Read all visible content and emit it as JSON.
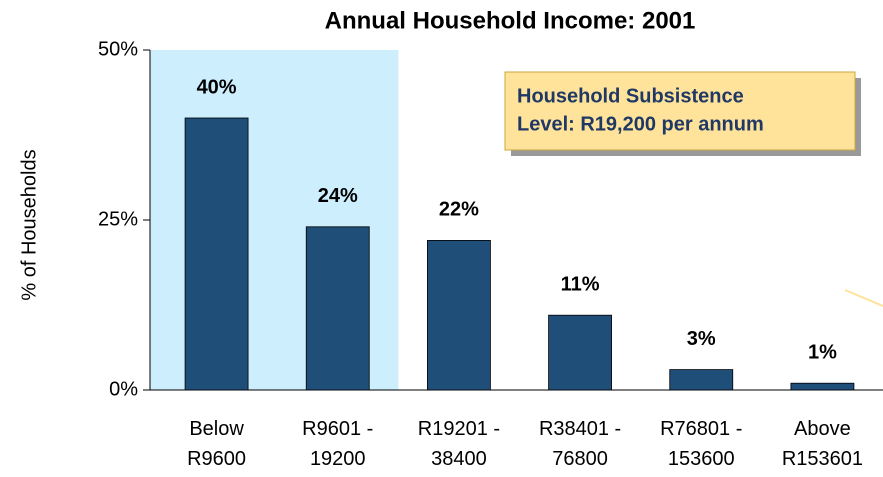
{
  "chart_data": {
    "type": "bar",
    "title": "Annual Household Income:  2001",
    "y_label": "% of Households",
    "annotation": [
      "Household Subsistence",
      "Level: R19,200 per annum"
    ],
    "categories": [
      "Below\nR9600",
      "R9601 -\n19200",
      "R19201 -\n38400",
      "R38401 -\n76800",
      "R76801 -\n153600",
      "Above\nR153601"
    ],
    "values": [
      40,
      24,
      22,
      11,
      3,
      1
    ],
    "value_labels": [
      "40%",
      "24%",
      "22%",
      "11%",
      "3%",
      "1%"
    ],
    "color": "#1f4e79",
    "highlight_color": "#cdeefd",
    "ylim": [
      0,
      50
    ],
    "yticks": [
      {
        "value": 0,
        "label": "0%"
      },
      {
        "value": 25,
        "label": "25%"
      },
      {
        "value": 50,
        "label": "50%"
      }
    ]
  }
}
